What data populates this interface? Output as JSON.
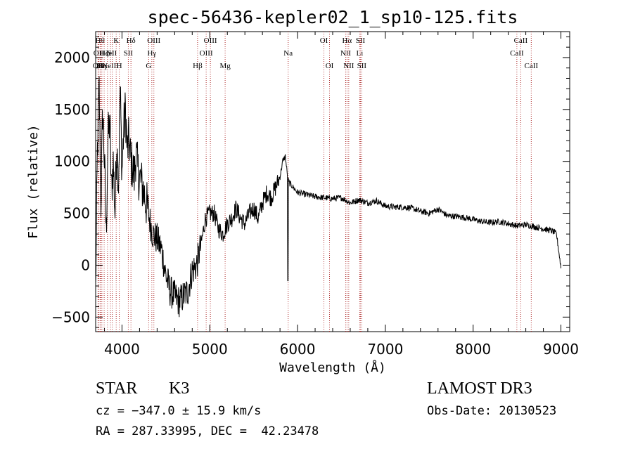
{
  "chart_data": {
    "type": "line",
    "title": "spec-56436-kepler02_1_sp10-125.fits",
    "xlabel": "Wavelength (Å)",
    "ylabel": "Flux (relative)",
    "xlim": [
      3700,
      9100
    ],
    "ylim": [
      -640,
      2250
    ],
    "xticks": [
      4000,
      5000,
      6000,
      7000,
      8000,
      9000
    ],
    "yticks": [
      -500,
      0,
      500,
      1000,
      1500,
      2000
    ],
    "grid": false,
    "spectrum": {
      "name": "flux",
      "x": [
        3700,
        3720,
        3740,
        3760,
        3780,
        3800,
        3820,
        3840,
        3860,
        3880,
        3900,
        3920,
        3940,
        3960,
        3980,
        4000,
        4020,
        4040,
        4060,
        4080,
        4100,
        4120,
        4140,
        4160,
        4180,
        4200,
        4250,
        4300,
        4350,
        4400,
        4450,
        4500,
        4550,
        4600,
        4650,
        4700,
        4750,
        4800,
        4850,
        4900,
        4950,
        5000,
        5050,
        5100,
        5150,
        5200,
        5250,
        5300,
        5350,
        5400,
        5450,
        5500,
        5550,
        5600,
        5650,
        5700,
        5750,
        5800,
        5830,
        5860,
        5880,
        5900,
        5950,
        6000,
        6100,
        6200,
        6300,
        6400,
        6500,
        6600,
        6700,
        6800,
        6900,
        7000,
        7100,
        7200,
        7300,
        7400,
        7500,
        7600,
        7700,
        7800,
        7900,
        8000,
        8100,
        8200,
        8300,
        8400,
        8500,
        8600,
        8700,
        8800,
        8900,
        8950,
        9000
      ],
      "y": [
        -250,
        1100,
        1700,
        600,
        1500,
        1000,
        300,
        1200,
        1400,
        700,
        1000,
        500,
        1200,
        800,
        1700,
        900,
        1300,
        1500,
        1100,
        1200,
        1000,
        950,
        850,
        1100,
        900,
        850,
        700,
        500,
        300,
        250,
        150,
        -100,
        -250,
        -300,
        -350,
        -300,
        -250,
        -50,
        0,
        200,
        450,
        500,
        500,
        350,
        300,
        400,
        450,
        550,
        450,
        400,
        500,
        550,
        450,
        600,
        700,
        650,
        750,
        850,
        1000,
        1050,
        900,
        800,
        750,
        700,
        680,
        660,
        650,
        640,
        650,
        600,
        630,
        600,
        620,
        570,
        560,
        560,
        550,
        520,
        500,
        540,
        480,
        470,
        460,
        440,
        420,
        410,
        420,
        400,
        380,
        390,
        370,
        350,
        330,
        300,
        -20
      ]
    },
    "spikes": [
      {
        "x": 5890,
        "y": -150
      }
    ],
    "line_markers": [
      {
        "x": 3727,
        "label": "OII",
        "row": 3
      },
      {
        "x": 3735,
        "label": "OII",
        "row": 2
      },
      {
        "x": 3750,
        "label": "Hθ",
        "row": 1
      },
      {
        "x": 3760,
        "label": "Hε",
        "row": 3
      },
      {
        "x": 3771,
        "label": "Hη",
        "row": 3
      },
      {
        "x": 3797,
        "label": "Hζ",
        "row": 2
      },
      {
        "x": 3835,
        "label": "He",
        "row": 2
      },
      {
        "x": 3869,
        "label": "NeIII",
        "row": 3
      },
      {
        "x": 3889,
        "label": "SII",
        "row": 2
      },
      {
        "x": 3934,
        "label": "K",
        "row": 1
      },
      {
        "x": 3969,
        "label": "H",
        "row": 3
      },
      {
        "x": 4072,
        "label": "SII",
        "row": 2
      },
      {
        "x": 4102,
        "label": "Hδ",
        "row": 1
      },
      {
        "x": 4304,
        "label": "G",
        "row": 3
      },
      {
        "x": 4340,
        "label": "Hγ",
        "row": 2
      },
      {
        "x": 4363,
        "label": "OIII",
        "row": 1
      },
      {
        "x": 4861,
        "label": "Hβ",
        "row": 3
      },
      {
        "x": 4959,
        "label": "OIII",
        "row": 2
      },
      {
        "x": 5007,
        "label": "OIII",
        "row": 1
      },
      {
        "x": 5175,
        "label": "Mg",
        "row": 3
      },
      {
        "x": 5893,
        "label": "Na",
        "row": 2
      },
      {
        "x": 6300,
        "label": "OI",
        "row": 1
      },
      {
        "x": 6364,
        "label": "OI",
        "row": 3
      },
      {
        "x": 6548,
        "label": "NII",
        "row": 2
      },
      {
        "x": 6563,
        "label": "Hα",
        "row": 1
      },
      {
        "x": 6583,
        "label": "NII",
        "row": 3
      },
      {
        "x": 6708,
        "label": "Li",
        "row": 2
      },
      {
        "x": 6716,
        "label": "SII",
        "row": 1
      },
      {
        "x": 6731,
        "label": "SII",
        "row": 3
      },
      {
        "x": 8498,
        "label": "CaII",
        "row": 2
      },
      {
        "x": 8542,
        "label": "CaII",
        "row": 1
      },
      {
        "x": 8662,
        "label": "CaII",
        "row": 3
      }
    ],
    "marker_color": "#b03030"
  },
  "info": {
    "object_type": "STAR",
    "subclass": "K3",
    "survey": "LAMOST DR3",
    "redshift": "cz = −347.0 ± 15.9 km/s",
    "obs_date": "Obs-Date: 20130523",
    "coords": "RA = 287.33995, DEC =  42.23478"
  }
}
